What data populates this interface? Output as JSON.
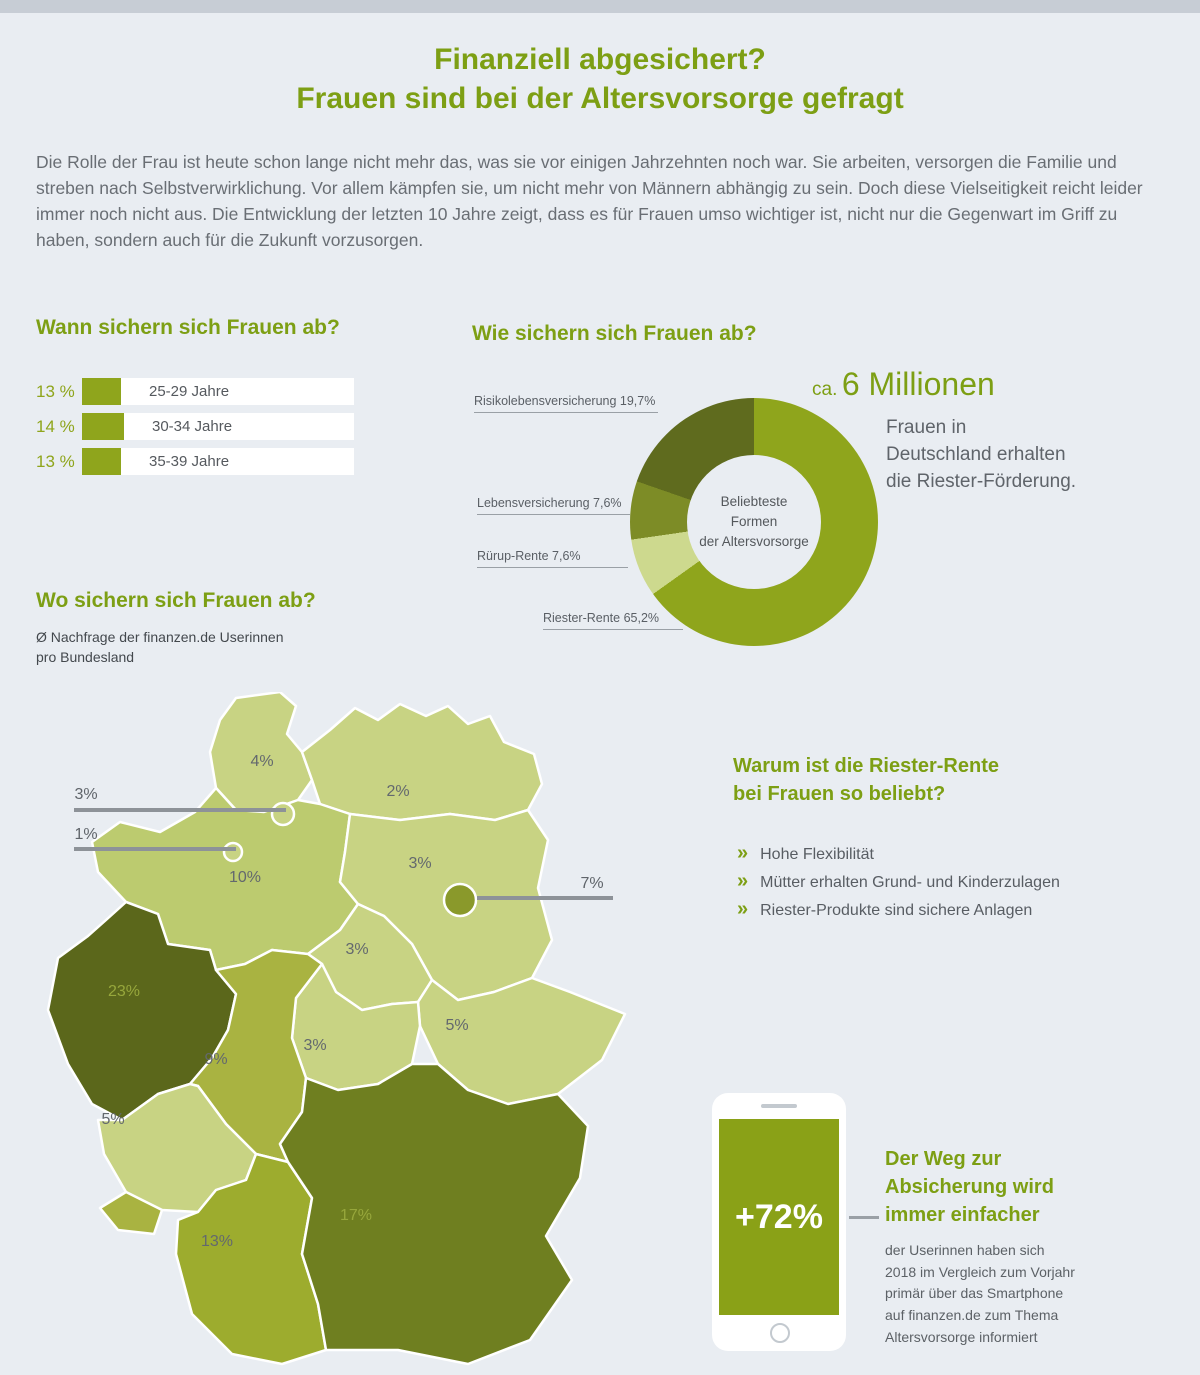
{
  "page": {
    "title_line1": "Finanziell abgesichert?",
    "title_line2": "Frauen sind bei der Altersvorsorge gefragt",
    "intro": "Die Rolle der Frau ist heute schon lange nicht mehr das, was sie vor einigen Jahrzehnten noch war. Sie arbeiten, versorgen die Familie und streben nach Selbstverwirklichung. Vor allem kämpfen sie, um nicht mehr von Männern abhängig zu sein. Doch diese Vielseitigkeit reicht leider immer noch nicht aus. Die Entwicklung der letzten 10 Jahre zeigt, dass es für Frauen umso wichtiger ist, nicht nur die Gegenwart im Griff zu haben, sondern auch für die Zukunft vorzusorgen."
  },
  "colors": {
    "accent_green": "#7d9f14",
    "bar_green": "#8fa51c",
    "donut_riester": "#8fa51c",
    "donut_ruerup": "#cdd98e",
    "donut_lebensversicherung": "#7d8c26",
    "donut_risikolebensversicherung": "#5f6b1e",
    "map_light": "#c8d383",
    "map_medium": "#a9b341",
    "map_dark": "#6f7f20",
    "map_darkest": "#5b671b",
    "callout_line_gray": "#8d9298"
  },
  "when_section": {
    "heading": "Wann sichern sich Frauen ab?",
    "rows": [
      {
        "percent": "13 %",
        "label": "25-29 Jahre"
      },
      {
        "percent": "14 %",
        "label": "30-34 Jahre"
      },
      {
        "percent": "13 %",
        "label": "35-39 Jahre"
      }
    ]
  },
  "how_section": {
    "heading": "Wie sichern sich Frauen ab?",
    "legend": [
      "Risikolebensversicherung 19,7%",
      "Lebensversicherung 7,6%",
      "Rürup-Rente 7,6%",
      "Riester-Rente 65,2%"
    ],
    "center_lines": [
      "Beliebteste",
      "Formen",
      "der Altersvorsorge"
    ],
    "stat_prefix": "ca.",
    "stat_big": "6 Millionen",
    "stat_lines": [
      "Frauen in",
      "Deutschland erhalten",
      "die Riester-Förderung."
    ]
  },
  "where_section": {
    "heading": "Wo sichern sich Frauen ab?",
    "subtitle": "Ø Nachfrage der finanzen.de Userinnen pro Bundesland",
    "states": {
      "sh": {
        "name": "Schleswig-Holstein",
        "label": "4%",
        "color": "#c8d383"
      },
      "hh": {
        "name": "Hamburg",
        "label": "3%",
        "color": "#c8d383"
      },
      "hb": {
        "name": "Bremen",
        "label": "1%",
        "color": "#c8d383"
      },
      "mv": {
        "name": "Mecklenburg-Vorpommern",
        "label": "2%",
        "color": "#c8d383"
      },
      "ni": {
        "name": "Niedersachsen",
        "label": "10%",
        "color": "#bccb6f"
      },
      "bb": {
        "name": "Brandenburg",
        "label": "3%",
        "color": "#c8d383"
      },
      "be": {
        "name": "Berlin",
        "label": "7%",
        "color": "#8a992b"
      },
      "st": {
        "name": "Sachsen-Anhalt",
        "label": "3%",
        "color": "#c8d383"
      },
      "sn": {
        "name": "Sachsen",
        "label": "5%",
        "color": "#c8d383"
      },
      "th": {
        "name": "Thüringen",
        "label": "3%",
        "color": "#c8d383"
      },
      "nw": {
        "name": "Nordrhein-Westfalen",
        "label": "23%",
        "color": "#5b671b"
      },
      "he": {
        "name": "Hessen",
        "label": "9%",
        "color": "#a9b341"
      },
      "rp": {
        "name": "Rheinland-Pfalz",
        "label": "5%",
        "color": "#c8d383"
      },
      "sl": {
        "name": "Saarland",
        "label": "",
        "color": "#a9b341"
      },
      "bw": {
        "name": "Baden-Württemberg",
        "label": "13%",
        "color": "#9dac2e"
      },
      "by": {
        "name": "Bayern",
        "label": "17%",
        "color": "#6f7f20"
      }
    }
  },
  "why_section": {
    "heading_line1": "Warum ist die Riester-Rente",
    "heading_line2": "bei Frauen so beliebt?",
    "chevron": "»",
    "bullets": [
      "Hohe Flexibilität",
      "Mütter erhalten Grund- und Kinderzulagen",
      "Riester-Produkte sind sichere Anlagen"
    ]
  },
  "phone_section": {
    "stat": "+72%",
    "heading_lines": [
      "Der Weg zur",
      "Absicherung wird",
      "immer einfacher"
    ],
    "text": "der Userinnen haben sich 2018 im Vergleich zum Vorjahr primär über das Smartphone auf finanzen.de zum Thema Altersvorsorge informiert"
  },
  "chart_data": [
    {
      "type": "bar",
      "title": "Wann sichern sich Frauen ab?",
      "categories": [
        "25-29 Jahre",
        "30-34 Jahre",
        "35-39 Jahre"
      ],
      "values": [
        13,
        14,
        13
      ],
      "unit": "%"
    },
    {
      "type": "pie",
      "subtype": "donut",
      "title": "Wie sichern sich Frauen ab?",
      "center_label": "Beliebteste Formen der Altersvorsorge",
      "series": [
        {
          "name": "Riester-Rente",
          "value": 65.2,
          "color": "#8fa51c"
        },
        {
          "name": "Rürup-Rente",
          "value": 7.6,
          "color": "#cdd98e"
        },
        {
          "name": "Lebensversicherung",
          "value": 7.6,
          "color": "#7d8c26"
        },
        {
          "name": "Risikolebensversicherung",
          "value": 19.7,
          "color": "#5f6b1e"
        }
      ],
      "annotation": "ca. 6 Millionen Frauen in Deutschland erhalten die Riester-Förderung."
    },
    {
      "type": "heatmap",
      "subtype": "choropleth-map",
      "title": "Wo sichern sich Frauen ab?",
      "subtitle": "Ø Nachfrage der finanzen.de Userinnen pro Bundesland",
      "unit": "%",
      "regions": [
        {
          "name": "Schleswig-Holstein",
          "value": 4
        },
        {
          "name": "Hamburg",
          "value": 3
        },
        {
          "name": "Bremen",
          "value": 1
        },
        {
          "name": "Mecklenburg-Vorpommern",
          "value": 2
        },
        {
          "name": "Niedersachsen",
          "value": 10
        },
        {
          "name": "Brandenburg",
          "value": 3
        },
        {
          "name": "Berlin",
          "value": 7
        },
        {
          "name": "Sachsen-Anhalt",
          "value": 3
        },
        {
          "name": "Sachsen",
          "value": 5
        },
        {
          "name": "Thüringen",
          "value": 3
        },
        {
          "name": "Nordrhein-Westfalen",
          "value": 23
        },
        {
          "name": "Hessen",
          "value": 9
        },
        {
          "name": "Rheinland-Pfalz",
          "value": 5
        },
        {
          "name": "Saarland",
          "value": null
        },
        {
          "name": "Baden-Württemberg",
          "value": 13
        },
        {
          "name": "Bayern",
          "value": 17
        }
      ]
    }
  ]
}
